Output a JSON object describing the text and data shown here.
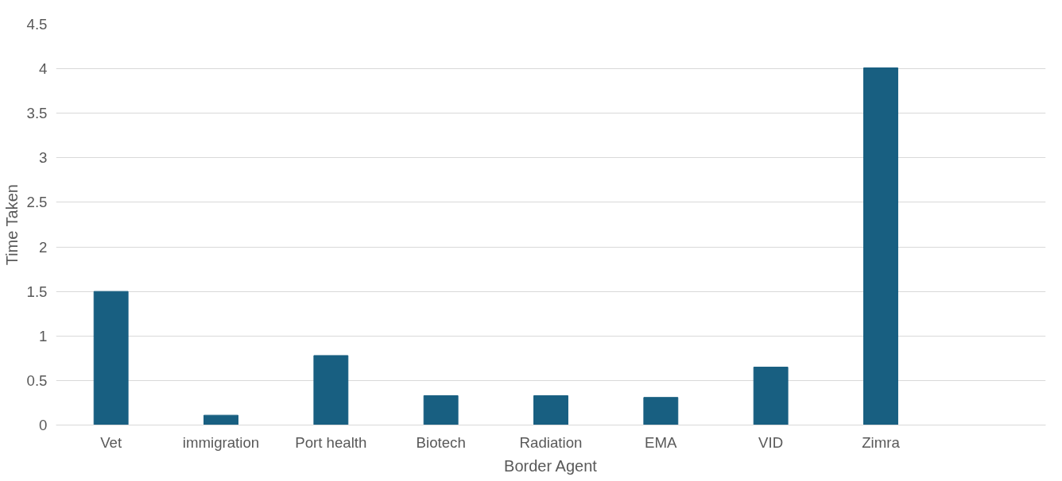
{
  "chart_data": {
    "type": "bar",
    "xlabel": "Border Agent",
    "ylabel": "Time Taken",
    "categories": [
      "Vet",
      "immigration",
      "Port health",
      "Biotech",
      "Radiation",
      "EMA",
      "VID",
      "Zimra",
      null
    ],
    "values": [
      1.5,
      0.11,
      0.78,
      0.33,
      0.33,
      0.31,
      0.65,
      4.01,
      null
    ],
    "color": "#185f81",
    "ylim": [
      0,
      4.5
    ],
    "yticks": [
      0,
      0.5,
      1,
      1.5,
      2,
      2.5,
      3,
      3.5,
      4,
      4.5
    ],
    "grid": "y"
  }
}
